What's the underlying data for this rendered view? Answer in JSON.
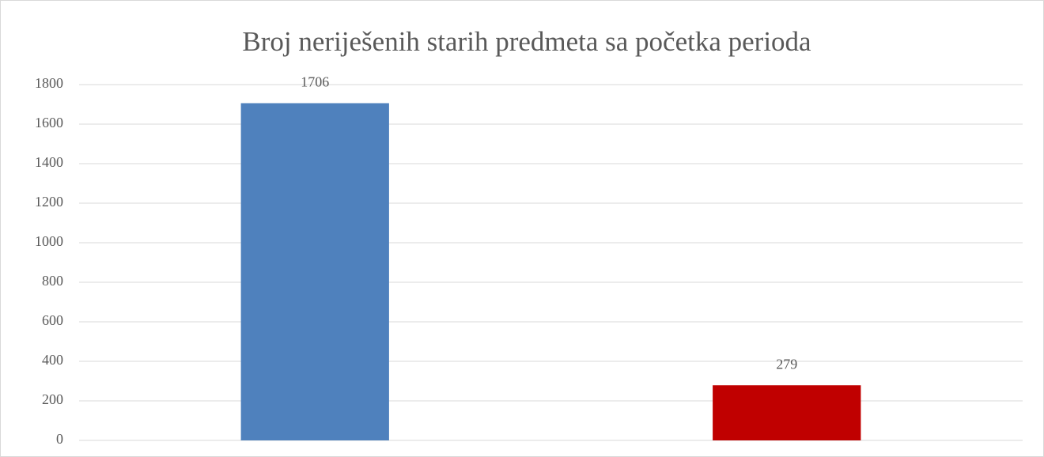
{
  "chart_data": {
    "type": "bar",
    "title": "Broj neriješenih starih predmeta sa početka perioda",
    "categories": [
      null,
      null
    ],
    "values": [
      1706,
      279
    ],
    "colors": [
      "#4f81bd",
      "#c00000"
    ],
    "ylim": [
      0,
      1800
    ],
    "yticks": [
      0,
      200,
      400,
      600,
      800,
      1000,
      1200,
      1400,
      1600,
      1800
    ],
    "grid": true
  }
}
